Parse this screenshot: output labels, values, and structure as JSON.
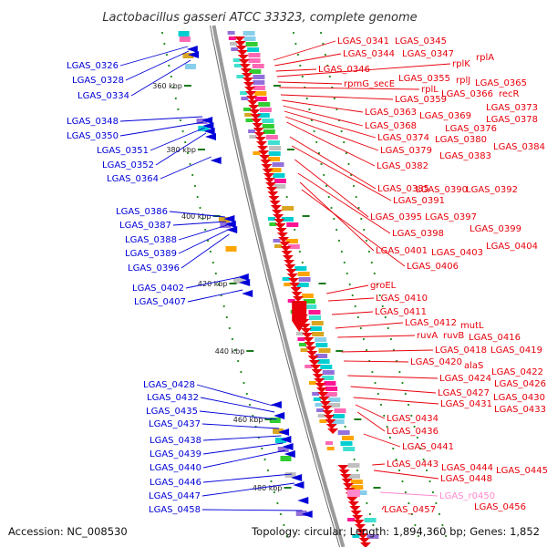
{
  "title": "Lactobacillus gasseri ATCC 33323, complete genome",
  "footer": {
    "accession": "Accession: NC_008530",
    "summary": "Topology: circular; Length: 1,894,360 bp; Genes: 1,852"
  },
  "colors": {
    "forward": "#e8000b",
    "reverse": "#0000d8",
    "rna": "#ff88cc",
    "backbone": "#9a9a9a",
    "tick": "#228b22"
  },
  "kbp_labels": [
    "360 kbp",
    "380 kbp",
    "400 kbp",
    "420 kbp",
    "440 kbp",
    "460 kbp",
    "480 kbp"
  ],
  "left_labels": [
    "LGAS_0326",
    "LGAS_0328",
    "LGAS_0334",
    "LGAS_0348",
    "LGAS_0350",
    "LGAS_0351",
    "LGAS_0352",
    "LGAS_0364",
    "LGAS_0386",
    "LGAS_0387",
    "LGAS_0388",
    "LGAS_0389",
    "LGAS_0396",
    "LGAS_0402",
    "LGAS_0407",
    "LGAS_0428",
    "LGAS_0432",
    "LGAS_0435",
    "LGAS_0437",
    "LGAS_0438",
    "LGAS_0439",
    "LGAS_0440",
    "LGAS_0446",
    "LGAS_0447",
    "LGAS_0458"
  ],
  "right_labels": [
    "LGAS_0341",
    "LGAS_0345",
    "LGAS_0344",
    "LGAS_0347",
    "rplA",
    "LGAS_0346",
    "rplK",
    "rpmG_secE",
    "LGAS_0355",
    "rplL",
    "LGAS_0365",
    "rplJ",
    "recR",
    "LGAS_0366",
    "LGAS_0359",
    "LGAS_0373",
    "LGAS_0363",
    "LGAS_0369",
    "LGAS_0378",
    "LGAS_0368",
    "LGAS_0376",
    "LGAS_0374",
    "LGAS_0380",
    "LGAS_0384",
    "LGAS_0379",
    "LGAS_0383",
    "LGAS_0382",
    "LGAS_0385",
    "LGAS_0390",
    "LGAS_0392",
    "LGAS_0391",
    "LGAS_0395",
    "LGAS_0397",
    "LGAS_0399",
    "LGAS_0398",
    "LGAS_0404",
    "LGAS_0401",
    "LGAS_0403",
    "LGAS_0406",
    "groEL",
    "LGAS_0410",
    "LGAS_0411",
    "LGAS_0412",
    "mutL",
    "ruvA",
    "ruvB",
    "LGAS_0416",
    "LGAS_0418",
    "LGAS_0419",
    "LGAS_0420",
    "alaS",
    "LGAS_0422",
    "LGAS_0424",
    "LGAS_0426",
    "LGAS_0427",
    "LGAS_0430",
    "LGAS_0431",
    "LGAS_0433",
    "LGAS_0434",
    "LGAS_0436",
    "LGAS_0441",
    "LGAS_0443",
    "LGAS_0444",
    "LGAS_0445",
    "LGAS_0448",
    "LGAS_r0450",
    "LGAS_0456",
    "LGAS_0457"
  ]
}
